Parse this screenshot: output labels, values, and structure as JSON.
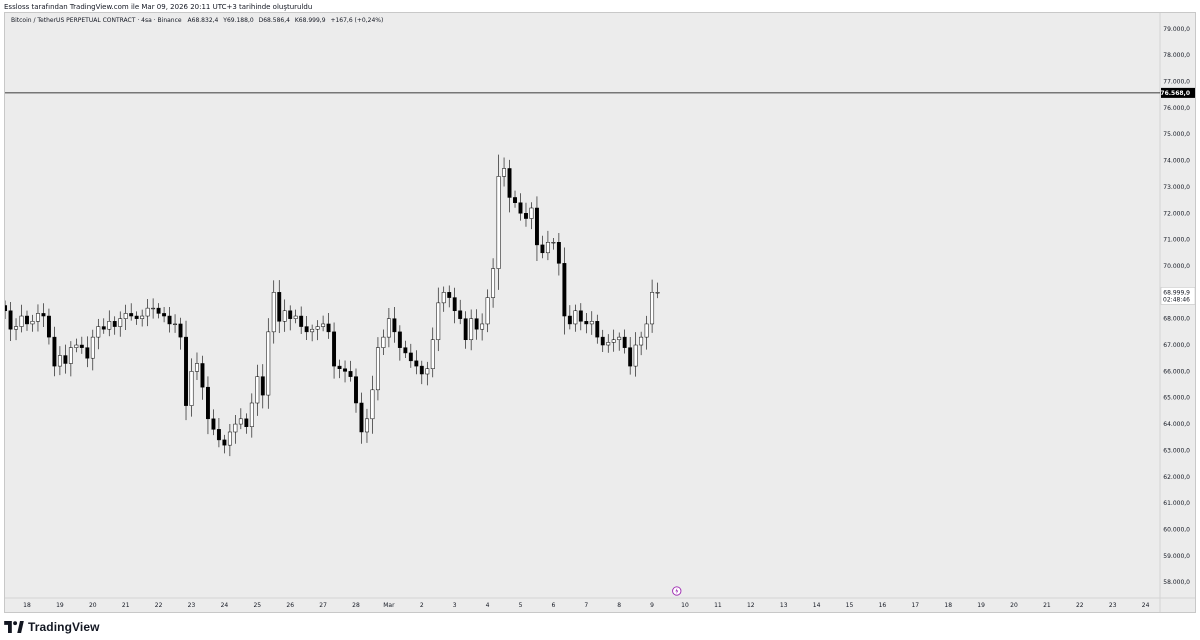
{
  "caption": "Essloss tarafından TradingView.com ile Mar 09, 2026 20:11 UTC+3 tarihinde oluşturuldu",
  "brand": "TradingView",
  "icons": {
    "logo": "tradingview-logo-icon",
    "event": "lightning-event-icon"
  },
  "header": {
    "symbol": "Bitcoin / TetherUS PERPETUAL CONTRACT",
    "interval": "4sa",
    "exchange": "Binance",
    "open": "A68.832,4",
    "high": "Y69.188,0",
    "low": "D68.586,4",
    "close": "K68.999,9",
    "change": "+167,6 (+0,24%)"
  },
  "colors": {
    "background": "#ececec",
    "up_candle_fill": "#ffffff",
    "down_candle_fill": "#000000",
    "candle_border": "#000000",
    "hline": "#000000",
    "price_label_bg": "#ffffff",
    "event_icon": "#9c27b0"
  },
  "chart_data": {
    "type": "candlestick",
    "y_axis": {
      "ticks": [
        "79.000,0",
        "78.000,0",
        "77.000,0",
        "76.000,0",
        "75.000,0",
        "74.000,0",
        "73.000,0",
        "72.000,0",
        "71.000,0",
        "70.000,0",
        "69.000,0",
        "68.000,0",
        "67.000,0",
        "66.000,0",
        "65.000,0",
        "64.000,0",
        "63.000,0",
        "62.000,0",
        "61.000,0",
        "60.000,0",
        "59.000,0",
        "58.000,0"
      ],
      "range": [
        57400,
        79600
      ]
    },
    "x_axis": {
      "labels": [
        "18",
        "19",
        "20",
        "21",
        "22",
        "23",
        "24",
        "25",
        "26",
        "27",
        "28",
        "Mar",
        "2",
        "3",
        "4",
        "5",
        "6",
        "7",
        "8",
        "9",
        "10",
        "11",
        "12",
        "13",
        "14",
        "15",
        "16",
        "17",
        "18",
        "19",
        "20",
        "21",
        "22",
        "23",
        "24"
      ]
    },
    "horizontal_line": {
      "price": 76568,
      "label": "76.568,0"
    },
    "last_price": {
      "price": 68999.9,
      "label": "68.999,9",
      "countdown": "02:48:46"
    },
    "events": [
      {
        "date": "9"
      }
    ],
    "candles_per_day": 6,
    "start_offset_days": -0.75,
    "closes": [
      68300,
      67600,
      67700,
      68100,
      67800,
      67900,
      68200,
      68100,
      67300,
      66200,
      66600,
      66300,
      66900,
      67000,
      66900,
      66500,
      67300,
      67700,
      67600,
      67900,
      67700,
      68000,
      68200,
      68100,
      68000,
      68100,
      68400,
      68400,
      68200,
      68100,
      67800,
      67800,
      67300,
      64700,
      66000,
      66300,
      65400,
      64200,
      63800,
      63400,
      63200,
      63700,
      64000,
      64200,
      63900,
      64800,
      65800,
      65100,
      67500,
      69000,
      67900,
      68300,
      68000,
      68100,
      67700,
      67500,
      67600,
      67700,
      67800,
      67500,
      66200,
      66100,
      66000,
      65800,
      64800,
      63700,
      64200,
      65300,
      66900,
      67300,
      68000,
      67500,
      66900,
      66700,
      66400,
      66200,
      65900,
      66100,
      67200,
      68600,
      69000,
      68800,
      68300,
      68000,
      67200,
      68000,
      67600,
      67800,
      68800,
      69900,
      73400,
      73700,
      72600,
      72400,
      72000,
      71800,
      72200,
      70800,
      70500,
      70900,
      70900,
      70100,
      68100,
      67800,
      68300,
      67900,
      67800,
      67900,
      67300,
      67000,
      67100,
      67200,
      67300,
      66900,
      66200,
      67000,
      67300,
      67800,
      69000,
      69000
    ]
  }
}
